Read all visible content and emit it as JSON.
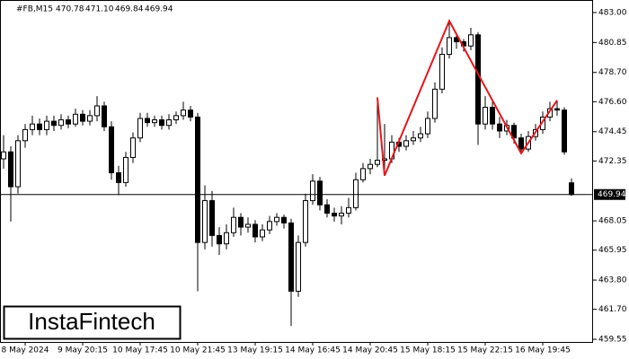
{
  "chart_data": {
    "type": "candlestick",
    "symbol": "#FB,M15",
    "header_values": [
      "470.78",
      "471.10",
      "469.84",
      "469.94"
    ],
    "categories": [
      null,
      null,
      null,
      "8 May 2024",
      null,
      null,
      null,
      null,
      null,
      null,
      null,
      "9 May 20:15",
      null,
      null,
      null,
      null,
      null,
      null,
      null,
      "10 May 17:45",
      null,
      null,
      null,
      null,
      null,
      null,
      null,
      "10 May 21:45",
      null,
      null,
      null,
      null,
      null,
      null,
      null,
      "13 May 19:15",
      null,
      null,
      null,
      null,
      null,
      null,
      null,
      "14 May 16:45",
      null,
      null,
      null,
      null,
      null,
      null,
      null,
      "14 May 20:45",
      null,
      null,
      null,
      null,
      null,
      null,
      null,
      "15 May 18:15",
      null,
      null,
      null,
      null,
      null,
      null,
      null,
      "15 May 22:15",
      null,
      null,
      null,
      null,
      null,
      null,
      null,
      "16 May 19:45",
      null,
      null,
      null,
      null
    ],
    "open": [
      472.5,
      473.0,
      470.5,
      473.8,
      474.6,
      475.0,
      474.6,
      475.2,
      474.9,
      475.3,
      475.0,
      475.7,
      475.2,
      475.6,
      476.3,
      474.8,
      471.5,
      470.8,
      472.6,
      474.0,
      475.4,
      475.1,
      475.3,
      474.9,
      475.3,
      475.6,
      476.0,
      475.5,
      466.5,
      469.5,
      467.0,
      466.4,
      467.2,
      468.3,
      467.6,
      467.8,
      466.9,
      467.4,
      468.0,
      468.3,
      467.9,
      463.0,
      466.5,
      469.5,
      470.9,
      469.2,
      468.6,
      468.4,
      468.6,
      469.0,
      471.0,
      471.8,
      472.1,
      472.4,
      472.5,
      473.7,
      473.4,
      473.8,
      474.0,
      474.3,
      475.4,
      477.5,
      480.0,
      481.2,
      480.9,
      480.6,
      481.4,
      475.0,
      476.2,
      475.0,
      474.5,
      474.9,
      474.0,
      473.2,
      474.1,
      474.6,
      475.5,
      476.1,
      476.0,
      470.78
    ],
    "high": [
      474.2,
      473.4,
      474.2,
      475.0,
      475.6,
      475.4,
      475.6,
      475.6,
      475.7,
      475.6,
      476.1,
      476.0,
      476.0,
      477.0,
      476.6,
      475.2,
      472.0,
      473.0,
      474.4,
      475.8,
      475.8,
      475.6,
      475.6,
      475.7,
      475.9,
      476.6,
      476.3,
      475.8,
      470.6,
      470.2,
      467.6,
      467.8,
      469.0,
      468.6,
      468.3,
      468.1,
      467.8,
      468.4,
      468.6,
      468.5,
      468.2,
      467.0,
      470.0,
      471.4,
      471.2,
      469.6,
      469.0,
      469.1,
      469.7,
      471.5,
      472.2,
      472.5,
      476.9,
      475.0,
      474.2,
      474.0,
      474.2,
      474.5,
      474.8,
      475.9,
      478.0,
      480.5,
      482.4,
      481.4,
      481.1,
      481.9,
      481.6,
      477.0,
      476.6,
      475.5,
      475.3,
      475.1,
      474.3,
      474.5,
      475.0,
      475.9,
      476.6,
      476.7,
      476.2,
      471.1
    ],
    "low": [
      471.8,
      468.0,
      470.0,
      473.3,
      474.2,
      474.2,
      474.2,
      474.5,
      474.6,
      474.7,
      474.8,
      474.9,
      474.9,
      475.2,
      474.5,
      471.0,
      469.9,
      470.5,
      472.2,
      473.7,
      474.8,
      474.8,
      474.6,
      474.6,
      475.0,
      475.3,
      475.2,
      463.0,
      466.0,
      466.2,
      465.6,
      466.0,
      466.9,
      467.0,
      467.2,
      466.5,
      466.6,
      467.1,
      467.7,
      467.5,
      460.5,
      462.6,
      466.2,
      469.2,
      468.8,
      468.3,
      468.0,
      467.8,
      468.3,
      468.8,
      470.8,
      471.4,
      471.9,
      471.3,
      472.2,
      473.0,
      473.1,
      473.5,
      473.7,
      474.0,
      475.1,
      477.2,
      479.7,
      480.4,
      480.2,
      480.3,
      473.5,
      474.6,
      474.6,
      474.0,
      474.2,
      473.6,
      472.9,
      473.0,
      473.8,
      474.3,
      475.2,
      475.6,
      472.8,
      469.84
    ],
    "close": [
      473.0,
      470.5,
      473.8,
      474.6,
      475.0,
      474.6,
      475.2,
      474.9,
      475.3,
      475.0,
      475.7,
      475.2,
      475.6,
      476.3,
      474.8,
      471.5,
      470.8,
      472.6,
      474.0,
      475.4,
      475.1,
      475.3,
      474.9,
      475.3,
      475.6,
      476.0,
      475.5,
      466.5,
      469.5,
      467.0,
      466.4,
      467.2,
      468.3,
      467.6,
      467.8,
      466.9,
      467.4,
      468.0,
      468.3,
      467.9,
      463.0,
      466.5,
      469.5,
      470.9,
      469.2,
      468.6,
      468.4,
      468.6,
      469.0,
      471.0,
      471.8,
      472.1,
      472.4,
      472.5,
      473.7,
      473.4,
      473.8,
      474.0,
      474.3,
      475.4,
      477.5,
      480.0,
      481.2,
      480.9,
      480.6,
      481.4,
      475.0,
      476.2,
      475.0,
      474.5,
      474.9,
      474.0,
      473.2,
      474.1,
      474.6,
      475.5,
      476.1,
      476.0,
      473.0,
      469.94
    ],
    "ylim": [
      459.36,
      483.9
    ],
    "yticks": [
      {
        "value": 483.0,
        "label": "483.00"
      },
      {
        "value": 480.85,
        "label": "480.85"
      },
      {
        "value": 478.7,
        "label": "478.70"
      },
      {
        "value": 476.6,
        "label": "476.60"
      },
      {
        "value": 474.45,
        "label": "474.45"
      },
      {
        "value": 472.35,
        "label": "472.35"
      },
      {
        "value": 468.05,
        "label": "468.05"
      },
      {
        "value": 465.95,
        "label": "465.95"
      },
      {
        "value": 463.8,
        "label": "463.80"
      },
      {
        "value": 461.7,
        "label": "461.70"
      },
      {
        "value": 459.55,
        "label": "459.55"
      }
    ],
    "current_price": 469.94,
    "pattern": {
      "color": "#e8141b",
      "x": [
        52,
        53,
        62,
        72,
        77
      ],
      "values": [
        476.9,
        471.3,
        482.4,
        472.9,
        476.7
      ]
    },
    "logo": "InstaFintech"
  }
}
